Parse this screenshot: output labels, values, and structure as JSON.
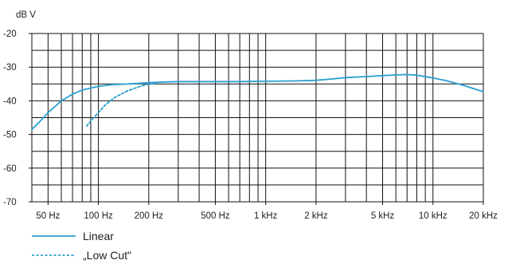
{
  "chart_data": {
    "type": "line",
    "title": "",
    "ylabel": "dB V",
    "xlabel": "",
    "x_scale": "log",
    "xlim": [
      40,
      20000
    ],
    "ylim": [
      -70,
      -20
    ],
    "grid": true,
    "y_ticks": [
      -20,
      -30,
      -40,
      -50,
      -60,
      -70
    ],
    "y_tick_labels": [
      "-20",
      "-30",
      "-40",
      "-50",
      "-60",
      "-70"
    ],
    "x_tick_labels": [
      {
        "x": 50,
        "label": "50 Hz"
      },
      {
        "x": 100,
        "label": "100 Hz"
      },
      {
        "x": 200,
        "label": "200 Hz"
      },
      {
        "x": 500,
        "label": "500 Hz"
      },
      {
        "x": 1000,
        "label": "1 kHz"
      },
      {
        "x": 2000,
        "label": "2 kHz"
      },
      {
        "x": 5000,
        "label": "5 kHz"
      },
      {
        "x": 10000,
        "label": "10 kHz"
      },
      {
        "x": 20000,
        "label": "20 kHz"
      }
    ],
    "legend_position": "bottom-left",
    "series": [
      {
        "name": "Linear",
        "style": "solid",
        "color": "#2a9fd0",
        "points": [
          [
            40,
            -48.5
          ],
          [
            45,
            -46
          ],
          [
            50,
            -43.5
          ],
          [
            60,
            -40
          ],
          [
            70,
            -38
          ],
          [
            80,
            -36.8
          ],
          [
            90,
            -36.2
          ],
          [
            100,
            -35.7
          ],
          [
            120,
            -35.2
          ],
          [
            150,
            -35.0
          ],
          [
            200,
            -34.6
          ],
          [
            250,
            -34.4
          ],
          [
            300,
            -34.3
          ],
          [
            500,
            -34.3
          ],
          [
            700,
            -34.3
          ],
          [
            1000,
            -34.2
          ],
          [
            1500,
            -34.1
          ],
          [
            2000,
            -33.9
          ],
          [
            2500,
            -33.5
          ],
          [
            3000,
            -33.1
          ],
          [
            4000,
            -32.8
          ],
          [
            5000,
            -32.5
          ],
          [
            6000,
            -32.3
          ],
          [
            7000,
            -32.2
          ],
          [
            8000,
            -32.4
          ],
          [
            10000,
            -33.2
          ],
          [
            12000,
            -34.0
          ],
          [
            15000,
            -35.3
          ],
          [
            20000,
            -37.3
          ]
        ]
      },
      {
        "name": "„Low Cut\"",
        "style": "dashed",
        "color": "#2a9fd0",
        "points": [
          [
            85,
            -47.5
          ],
          [
            90,
            -46
          ],
          [
            100,
            -43.5
          ],
          [
            110,
            -41.2
          ],
          [
            125,
            -39.0
          ],
          [
            150,
            -37.0
          ],
          [
            175,
            -35.8
          ],
          [
            200,
            -35.0
          ],
          [
            230,
            -34.7
          ]
        ]
      }
    ]
  },
  "colors": {
    "curve": "#2a9fd0",
    "grid": "#111111",
    "background": "#ffffff"
  }
}
